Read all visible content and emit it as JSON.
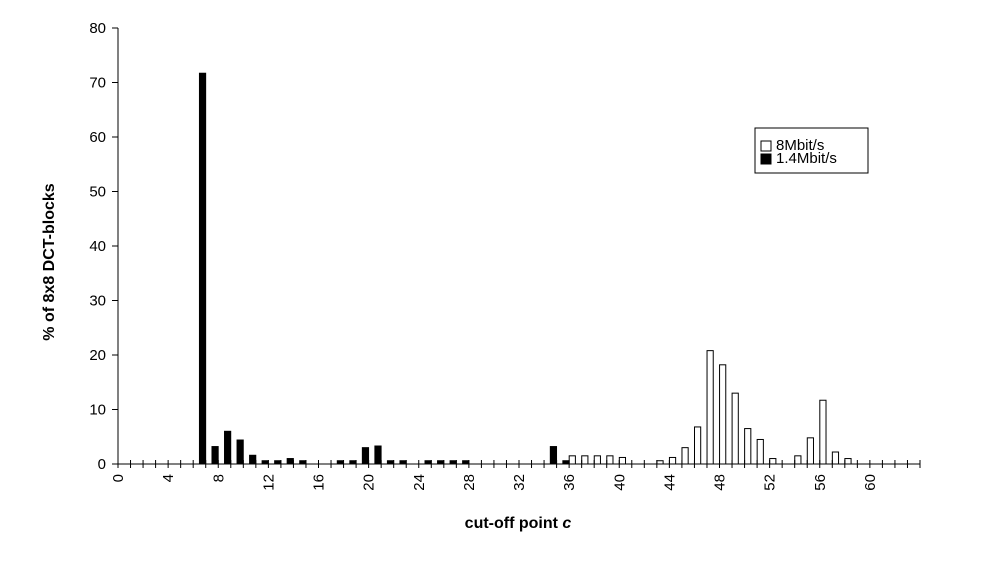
{
  "chart_data": {
    "type": "bar",
    "xlabel": "cut-off point ",
    "xlabel_var": "c",
    "ylabel": "% of 8x8 DCT-blocks",
    "ylim": [
      0,
      80
    ],
    "yticks": [
      0,
      10,
      20,
      30,
      40,
      50,
      60,
      70,
      80
    ],
    "xlim": [
      0,
      64
    ],
    "xticks": [
      0,
      4,
      8,
      12,
      16,
      20,
      24,
      28,
      32,
      36,
      40,
      44,
      48,
      52,
      56,
      60
    ],
    "grid": false,
    "legend_position": "top-right",
    "colors": {
      "8Mbit/s": "#ffffff",
      "1.4Mbit/s": "#000000"
    },
    "categories": [
      0,
      1,
      2,
      3,
      4,
      5,
      6,
      7,
      8,
      9,
      10,
      11,
      12,
      13,
      14,
      15,
      16,
      17,
      18,
      19,
      20,
      21,
      22,
      23,
      24,
      25,
      26,
      27,
      28,
      29,
      30,
      31,
      32,
      33,
      34,
      35,
      36,
      37,
      38,
      39,
      40,
      41,
      42,
      43,
      44,
      45,
      46,
      47,
      48,
      49,
      50,
      51,
      52,
      53,
      54,
      55,
      56,
      57,
      58,
      59,
      60,
      61,
      62,
      63
    ],
    "series": [
      {
        "name": "8Mbit/s",
        "values": [
          0,
          0,
          0,
          0,
          0,
          0,
          0,
          0,
          0,
          0,
          0,
          0,
          0,
          0,
          0,
          0,
          0,
          0,
          0,
          0,
          0,
          0,
          0,
          0,
          0,
          0,
          0,
          0,
          0,
          0,
          0,
          0,
          0,
          0,
          0,
          0,
          1.5,
          1.5,
          1.5,
          1.5,
          1.2,
          0,
          0,
          0.6,
          1.2,
          3,
          6.8,
          20.8,
          18.2,
          13,
          6.5,
          4.5,
          1,
          0,
          1.5,
          4.8,
          11.7,
          2.2,
          1,
          0,
          0,
          0,
          0,
          0
        ]
      },
      {
        "name": "1.4Mbit/s",
        "values": [
          0,
          0,
          0,
          0,
          0,
          0,
          71.7,
          3.2,
          6,
          4.4,
          1.6,
          0.6,
          0.6,
          1,
          0.6,
          0,
          0,
          0.6,
          0.6,
          3,
          3.3,
          0.6,
          0.6,
          0,
          0.6,
          0.6,
          0.6,
          0.6,
          0,
          0,
          0,
          0,
          0,
          0,
          3.2,
          0.6,
          0,
          0,
          0,
          0,
          0,
          0,
          0,
          0,
          0,
          0,
          0,
          0,
          0,
          0,
          0,
          0,
          0,
          0,
          0,
          0,
          0,
          0,
          0,
          0,
          0,
          0,
          0,
          0
        ]
      }
    ]
  }
}
